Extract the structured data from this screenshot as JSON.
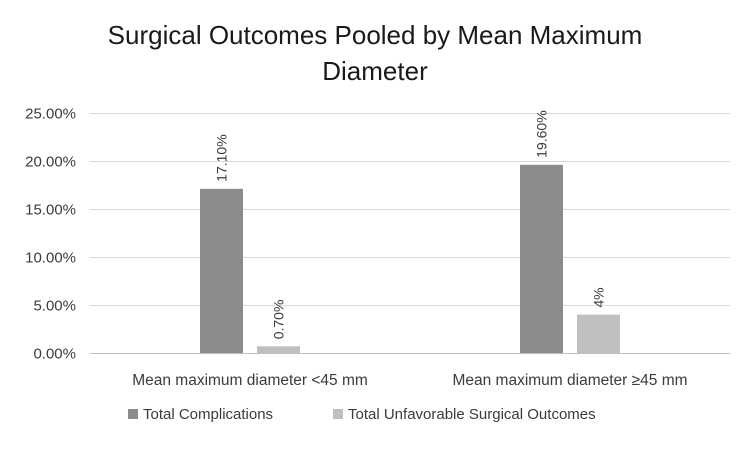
{
  "chart_data": {
    "type": "bar",
    "title_lines": [
      "Surgical Outcomes Pooled by Mean Maximum",
      "Diameter"
    ],
    "categories": [
      "Mean maximum diameter <45 mm",
      "Mean maximum diameter ≥45 mm"
    ],
    "series": [
      {
        "name": "Total Complications",
        "values": [
          17.1,
          19.6
        ],
        "labels": [
          "17.10%",
          "19.60%"
        ],
        "color": "#8c8c8c"
      },
      {
        "name": "Total Unfavorable Surgical Outcomes",
        "values": [
          0.7,
          4
        ],
        "labels": [
          "0.70%",
          "4%"
        ],
        "color": "#bfbfbf"
      }
    ],
    "ylim": [
      0,
      25
    ],
    "yticks": [
      0,
      5,
      10,
      15,
      20,
      25
    ],
    "ytick_labels": [
      "0.00%",
      "5.00%",
      "10.00%",
      "15.00%",
      "20.00%",
      "25.00%"
    ],
    "grid": true,
    "legend_position": "bottom"
  }
}
